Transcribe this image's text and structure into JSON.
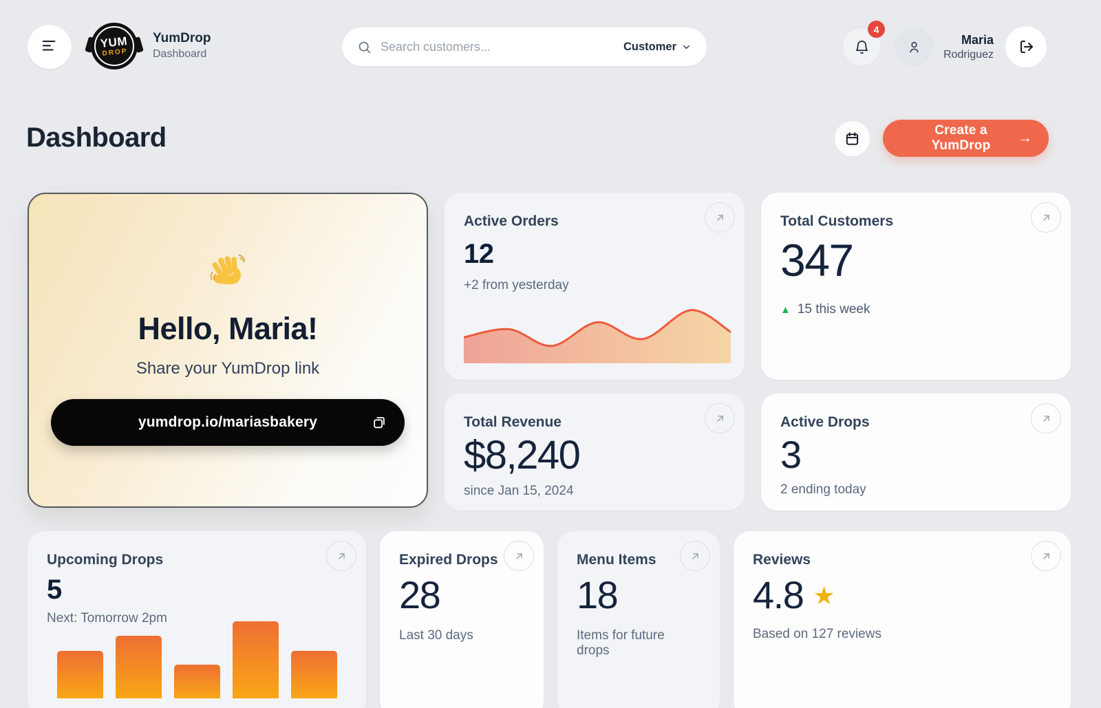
{
  "colors": {
    "accent_orange": "#F0684C",
    "badge_red": "#E5483C",
    "positive_green": "#1FB356",
    "star_gold": "#EFB310",
    "area_stroke": "#EC5B3C",
    "area_fill_left": "#EE9181",
    "area_fill_right": "#F6CF94",
    "bar_top": "#EE6F33",
    "bar_bottom": "#F9A617"
  },
  "header": {
    "logo_line1": "YUM",
    "logo_line2": "DROP",
    "brand_name": "YumDrop",
    "brand_subtitle": "Dashboard",
    "search_placeholder": "Search customers...",
    "search_filter": "Customer",
    "notification_count": "4",
    "user_first": "Maria",
    "user_last": "Rodriguez"
  },
  "page": {
    "title": "Dashboard",
    "create_button": "Create a YumDrop",
    "create_arrow": "→"
  },
  "hello": {
    "greeting": "Hello, Maria!",
    "subtitle": "Share your YumDrop link",
    "link": "yumdrop.io/mariasbakery"
  },
  "cards": {
    "active_orders": {
      "title": "Active Orders",
      "value": "12",
      "subtext": "+2 from yesterday"
    },
    "total_customers": {
      "title": "Total Customers",
      "value": "347",
      "trend_icon": "▲",
      "subtext": "15 this week"
    },
    "total_revenue": {
      "title": "Total Revenue",
      "value": "$8,240",
      "subtext": "since Jan 15, 2024"
    },
    "active_drops": {
      "title": "Active Drops",
      "value": "3",
      "subtext": "2 ending today"
    },
    "upcoming_drops": {
      "title": "Upcoming Drops",
      "value": "5",
      "subtext": "Next: Tomorrow 2pm"
    },
    "expired_drops": {
      "title": "Expired Drops",
      "value": "28",
      "subtext": "Last 30 days"
    },
    "menu_items": {
      "title": "Menu Items",
      "value": "18",
      "subtext": "Items for future drops"
    },
    "reviews": {
      "title": "Reviews",
      "value": "4.8",
      "star": "★",
      "subtext": "Based on 127 reviews"
    }
  },
  "chart_data": [
    {
      "id": "active-orders-trend",
      "type": "area",
      "title": "Active Orders sparkline (unlabeled)",
      "points": [
        [
          0,
          45
        ],
        [
          17,
          59
        ],
        [
          33,
          30
        ],
        [
          50,
          71
        ],
        [
          67,
          42
        ],
        [
          85,
          92
        ],
        [
          100,
          54
        ]
      ],
      "x_range": [
        0,
        100
      ],
      "y_range": [
        0,
        100
      ],
      "axes_shown": false,
      "legend": false
    },
    {
      "id": "upcoming-drops-bars",
      "type": "bar",
      "title": "Upcoming drops mini bar chart (unlabeled)",
      "values": [
        62,
        81,
        44,
        100,
        62
      ],
      "y_range": [
        0,
        100
      ],
      "axes_shown": false,
      "legend": false
    }
  ]
}
